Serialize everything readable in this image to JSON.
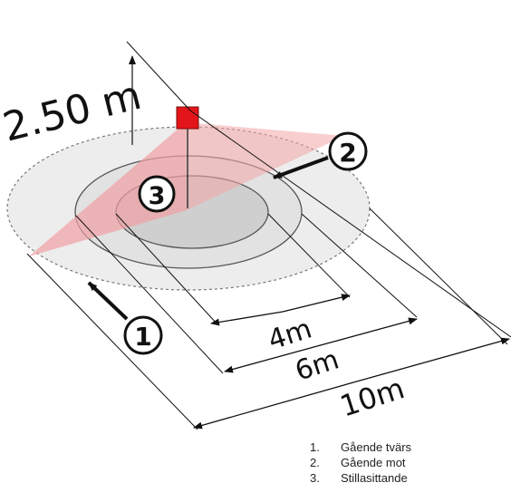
{
  "height_label": "2.50 m",
  "dimensions": {
    "inner": "4m",
    "middle": "6m",
    "outer": "10m"
  },
  "markers": {
    "m1": "1",
    "m2": "2",
    "m3": "3"
  },
  "legend": [
    {
      "num": "1.",
      "text": "Gående tvärs"
    },
    {
      "num": "2.",
      "text": "Gående mot"
    },
    {
      "num": "3.",
      "text": "Stillasittande"
    }
  ],
  "colors": {
    "sensor": "#e3151a",
    "detection_fan": "#f2b3b5",
    "outer_zone": "#ededed",
    "middle_zone": "#e2e2e2",
    "inner_zone": "#cfcfcf"
  }
}
